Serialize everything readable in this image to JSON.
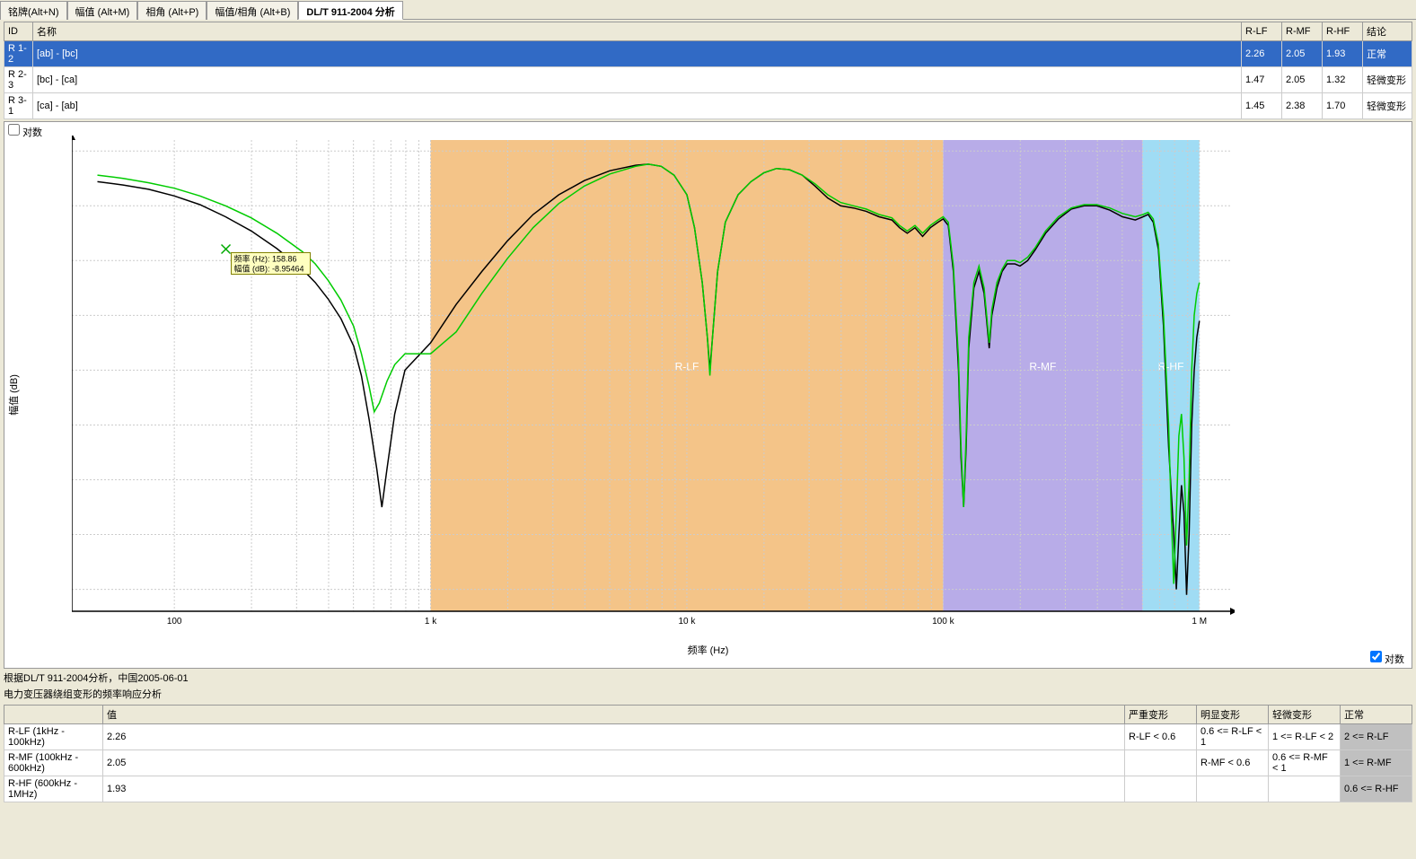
{
  "tabs": {
    "items": [
      "铭牌(Alt+N)",
      "幅值 (Alt+M)",
      "相角 (Alt+P)",
      "幅值/相角 (Alt+B)",
      "DL/T 911-2004 分析"
    ],
    "active_index": 4
  },
  "top_table": {
    "headers": {
      "id": "ID",
      "name": "名称",
      "rlf": "R-LF",
      "rmf": "R-MF",
      "rhf": "R-HF",
      "concl": "结论"
    },
    "rows": [
      {
        "id": "R 1-2",
        "name": "[ab] - [bc]",
        "rlf": "2.26",
        "rmf": "2.05",
        "rhf": "1.93",
        "concl": "正常",
        "selected": true
      },
      {
        "id": "R 2-3",
        "name": "[bc] - [ca]",
        "rlf": "1.47",
        "rmf": "2.05",
        "rhf": "1.32",
        "concl": "轻微变形",
        "selected": false
      },
      {
        "id": "R 3-1",
        "name": "[ca] - [ab]",
        "rlf": "1.45",
        "rmf": "2.38",
        "rhf": "1.70",
        "concl": "轻微变形",
        "selected": false
      }
    ]
  },
  "chart": {
    "log_label": "对数",
    "ylabel": "幅值 (dB)",
    "xlabel": "频率 (Hz)",
    "ylim": [
      -42,
      1
    ],
    "yticks": [
      0,
      -5,
      -10,
      -15,
      -20,
      -25,
      -30,
      -35,
      -40
    ],
    "xlog_min": 1.6,
    "xlog_max": 6.12,
    "xtick_logs": [
      2,
      3,
      4,
      5,
      6
    ],
    "xtick_labels": [
      "100",
      "1 k",
      "10 k",
      "100 k",
      "1 M"
    ],
    "regions": [
      {
        "label": "R-LF",
        "log_start": 3.0,
        "log_end": 5.0,
        "color": "#f0b060",
        "text_color": "#ffffff"
      },
      {
        "label": "R-MF",
        "log_start": 5.0,
        "log_end": 5.778,
        "color": "#a090e0",
        "text_color": "#ffffff"
      },
      {
        "label": "R-HF",
        "log_start": 5.778,
        "log_end": 6.0,
        "color": "#80d0f0",
        "text_color": "#ffffff"
      }
    ],
    "tooltip": {
      "logx": 2.201,
      "y": -8.95,
      "lines": [
        "频率 (Hz): 158.86",
        "幅值 (dB): -8.95464"
      ],
      "bg": "#ffffc0",
      "border": "#808000"
    },
    "marker": {
      "logx": 2.201,
      "y": -8.95,
      "color": "#00aa00"
    },
    "series": [
      {
        "color": "#000000",
        "width": 1.5,
        "points": [
          [
            1.7,
            -2.8
          ],
          [
            1.8,
            -3.1
          ],
          [
            1.9,
            -3.5
          ],
          [
            2.0,
            -4.1
          ],
          [
            2.1,
            -4.9
          ],
          [
            2.2,
            -6.0
          ],
          [
            2.3,
            -7.3
          ],
          [
            2.4,
            -8.9
          ],
          [
            2.5,
            -10.8
          ],
          [
            2.55,
            -12.0
          ],
          [
            2.6,
            -13.5
          ],
          [
            2.65,
            -15.3
          ],
          [
            2.7,
            -17.8
          ],
          [
            2.73,
            -20.5
          ],
          [
            2.76,
            -24.5
          ],
          [
            2.79,
            -29.0
          ],
          [
            2.81,
            -32.5
          ],
          [
            2.83,
            -29.0
          ],
          [
            2.86,
            -24.0
          ],
          [
            2.9,
            -20.0
          ],
          [
            3.0,
            -17.5
          ],
          [
            3.1,
            -14.0
          ],
          [
            3.2,
            -11.0
          ],
          [
            3.3,
            -8.2
          ],
          [
            3.4,
            -5.8
          ],
          [
            3.5,
            -4.0
          ],
          [
            3.6,
            -2.7
          ],
          [
            3.7,
            -1.8
          ],
          [
            3.8,
            -1.3
          ],
          [
            3.85,
            -1.2
          ],
          [
            3.9,
            -1.4
          ],
          [
            3.95,
            -2.2
          ],
          [
            4.0,
            -4.0
          ],
          [
            4.03,
            -7.0
          ],
          [
            4.06,
            -12.0
          ],
          [
            4.08,
            -17.0
          ],
          [
            4.09,
            -20.0
          ],
          [
            4.1,
            -17.0
          ],
          [
            4.12,
            -11.0
          ],
          [
            4.15,
            -6.5
          ],
          [
            4.2,
            -4.0
          ],
          [
            4.25,
            -2.8
          ],
          [
            4.3,
            -2.0
          ],
          [
            4.35,
            -1.6
          ],
          [
            4.4,
            -1.7
          ],
          [
            4.45,
            -2.2
          ],
          [
            4.5,
            -3.2
          ],
          [
            4.55,
            -4.3
          ],
          [
            4.6,
            -5.0
          ],
          [
            4.65,
            -5.2
          ],
          [
            4.7,
            -5.5
          ],
          [
            4.75,
            -6.0
          ],
          [
            4.8,
            -6.3
          ],
          [
            4.83,
            -7.0
          ],
          [
            4.86,
            -7.5
          ],
          [
            4.89,
            -7.0
          ],
          [
            4.92,
            -7.8
          ],
          [
            4.95,
            -7.0
          ],
          [
            4.98,
            -6.5
          ],
          [
            5.0,
            -6.2
          ],
          [
            5.02,
            -6.8
          ],
          [
            5.04,
            -11.0
          ],
          [
            5.06,
            -20.0
          ],
          [
            5.07,
            -28.0
          ],
          [
            5.08,
            -32.5
          ],
          [
            5.09,
            -27.0
          ],
          [
            5.1,
            -18.0
          ],
          [
            5.12,
            -12.5
          ],
          [
            5.14,
            -11.0
          ],
          [
            5.16,
            -13.0
          ],
          [
            5.18,
            -18.0
          ],
          [
            5.19,
            -15.0
          ],
          [
            5.21,
            -12.5
          ],
          [
            5.23,
            -11.0
          ],
          [
            5.25,
            -10.3
          ],
          [
            5.28,
            -10.3
          ],
          [
            5.3,
            -10.5
          ],
          [
            5.33,
            -10.0
          ],
          [
            5.36,
            -9.0
          ],
          [
            5.4,
            -7.5
          ],
          [
            5.45,
            -6.2
          ],
          [
            5.5,
            -5.3
          ],
          [
            5.55,
            -5.0
          ],
          [
            5.6,
            -5.0
          ],
          [
            5.65,
            -5.4
          ],
          [
            5.7,
            -6.0
          ],
          [
            5.75,
            -6.3
          ],
          [
            5.78,
            -6.0
          ],
          [
            5.8,
            -5.8
          ],
          [
            5.82,
            -6.5
          ],
          [
            5.84,
            -9.0
          ],
          [
            5.86,
            -16.0
          ],
          [
            5.88,
            -27.0
          ],
          [
            5.9,
            -35.0
          ],
          [
            5.91,
            -40.0
          ],
          [
            5.92,
            -35.0
          ],
          [
            5.93,
            -30.5
          ],
          [
            5.94,
            -33.0
          ],
          [
            5.95,
            -40.5
          ],
          [
            5.96,
            -35.0
          ],
          [
            5.97,
            -25.0
          ],
          [
            5.98,
            -20.0
          ],
          [
            5.99,
            -17.0
          ],
          [
            6.0,
            -15.5
          ]
        ]
      },
      {
        "color": "#00cc00",
        "width": 1.5,
        "points": [
          [
            1.7,
            -2.2
          ],
          [
            1.8,
            -2.5
          ],
          [
            1.9,
            -2.9
          ],
          [
            2.0,
            -3.4
          ],
          [
            2.1,
            -4.1
          ],
          [
            2.2,
            -5.0
          ],
          [
            2.3,
            -6.1
          ],
          [
            2.4,
            -7.5
          ],
          [
            2.5,
            -9.2
          ],
          [
            2.55,
            -10.3
          ],
          [
            2.6,
            -11.8
          ],
          [
            2.65,
            -13.6
          ],
          [
            2.7,
            -16.0
          ],
          [
            2.73,
            -18.5
          ],
          [
            2.76,
            -21.5
          ],
          [
            2.78,
            -23.8
          ],
          [
            2.8,
            -23.0
          ],
          [
            2.83,
            -21.0
          ],
          [
            2.86,
            -19.5
          ],
          [
            2.9,
            -18.5
          ],
          [
            3.0,
            -18.5
          ],
          [
            3.1,
            -16.5
          ],
          [
            3.2,
            -13.0
          ],
          [
            3.3,
            -9.8
          ],
          [
            3.4,
            -7.0
          ],
          [
            3.5,
            -4.8
          ],
          [
            3.6,
            -3.2
          ],
          [
            3.7,
            -2.1
          ],
          [
            3.8,
            -1.4
          ],
          [
            3.85,
            -1.2
          ],
          [
            3.9,
            -1.4
          ],
          [
            3.95,
            -2.2
          ],
          [
            4.0,
            -4.0
          ],
          [
            4.03,
            -7.0
          ],
          [
            4.06,
            -12.0
          ],
          [
            4.08,
            -17.0
          ],
          [
            4.09,
            -20.5
          ],
          [
            4.1,
            -17.0
          ],
          [
            4.12,
            -11.0
          ],
          [
            4.15,
            -6.5
          ],
          [
            4.2,
            -4.0
          ],
          [
            4.25,
            -2.8
          ],
          [
            4.3,
            -2.0
          ],
          [
            4.35,
            -1.6
          ],
          [
            4.4,
            -1.7
          ],
          [
            4.45,
            -2.2
          ],
          [
            4.5,
            -3.0
          ],
          [
            4.55,
            -4.0
          ],
          [
            4.6,
            -4.7
          ],
          [
            4.65,
            -5.0
          ],
          [
            4.7,
            -5.3
          ],
          [
            4.75,
            -5.8
          ],
          [
            4.8,
            -6.1
          ],
          [
            4.83,
            -6.8
          ],
          [
            4.86,
            -7.3
          ],
          [
            4.89,
            -6.8
          ],
          [
            4.92,
            -7.5
          ],
          [
            4.95,
            -6.8
          ],
          [
            4.98,
            -6.3
          ],
          [
            5.0,
            -6.0
          ],
          [
            5.02,
            -6.5
          ],
          [
            5.04,
            -10.5
          ],
          [
            5.06,
            -19.0
          ],
          [
            5.07,
            -27.0
          ],
          [
            5.08,
            -32.5
          ],
          [
            5.09,
            -26.0
          ],
          [
            5.1,
            -17.0
          ],
          [
            5.12,
            -12.0
          ],
          [
            5.14,
            -10.5
          ],
          [
            5.16,
            -12.5
          ],
          [
            5.18,
            -17.5
          ],
          [
            5.19,
            -14.5
          ],
          [
            5.21,
            -12.0
          ],
          [
            5.23,
            -10.8
          ],
          [
            5.25,
            -10.0
          ],
          [
            5.28,
            -10.0
          ],
          [
            5.3,
            -10.2
          ],
          [
            5.33,
            -9.7
          ],
          [
            5.36,
            -8.8
          ],
          [
            5.4,
            -7.3
          ],
          [
            5.45,
            -6.0
          ],
          [
            5.5,
            -5.2
          ],
          [
            5.55,
            -4.9
          ],
          [
            5.6,
            -4.9
          ],
          [
            5.65,
            -5.2
          ],
          [
            5.7,
            -5.7
          ],
          [
            5.75,
            -6.0
          ],
          [
            5.78,
            -5.8
          ],
          [
            5.8,
            -5.6
          ],
          [
            5.82,
            -6.2
          ],
          [
            5.84,
            -8.5
          ],
          [
            5.86,
            -15.0
          ],
          [
            5.88,
            -25.0
          ],
          [
            5.89,
            -33.0
          ],
          [
            5.9,
            -39.5
          ],
          [
            5.91,
            -33.0
          ],
          [
            5.92,
            -26.0
          ],
          [
            5.93,
            -24.0
          ],
          [
            5.94,
            -28.0
          ],
          [
            5.95,
            -36.0
          ],
          [
            5.96,
            -30.0
          ],
          [
            5.97,
            -20.0
          ],
          [
            5.98,
            -15.0
          ],
          [
            5.99,
            -13.0
          ],
          [
            6.0,
            -12.0
          ]
        ]
      }
    ]
  },
  "analysis": {
    "line1": "根据DL/T 911-2004分析，中国2005-06-01",
    "line2": "电力变压器绕组变形的频率响应分析",
    "headers": {
      "blank": "",
      "val": "值",
      "sev": "严重变形",
      "obv": "明显变形",
      "sli": "轻微变形",
      "norm": "正常"
    },
    "rows": [
      {
        "param": "R-LF (1kHz - 100kHz)",
        "val": "2.26",
        "sev": "R-LF < 0.6",
        "obv": "0.6 <= R-LF < 1",
        "sli": "1 <= R-LF < 2",
        "norm": "2 <= R-LF",
        "hl": "norm"
      },
      {
        "param": "R-MF (100kHz - 600kHz)",
        "val": "2.05",
        "sev": "",
        "obv": "R-MF < 0.6",
        "sli": "0.6 <= R-MF < 1",
        "norm": "1 <= R-MF",
        "hl": "norm"
      },
      {
        "param": "R-HF (600kHz - 1MHz)",
        "val": "1.93",
        "sev": "",
        "obv": "",
        "sli": "",
        "norm": "0.6 <= R-HF",
        "hl": "norm"
      }
    ]
  }
}
